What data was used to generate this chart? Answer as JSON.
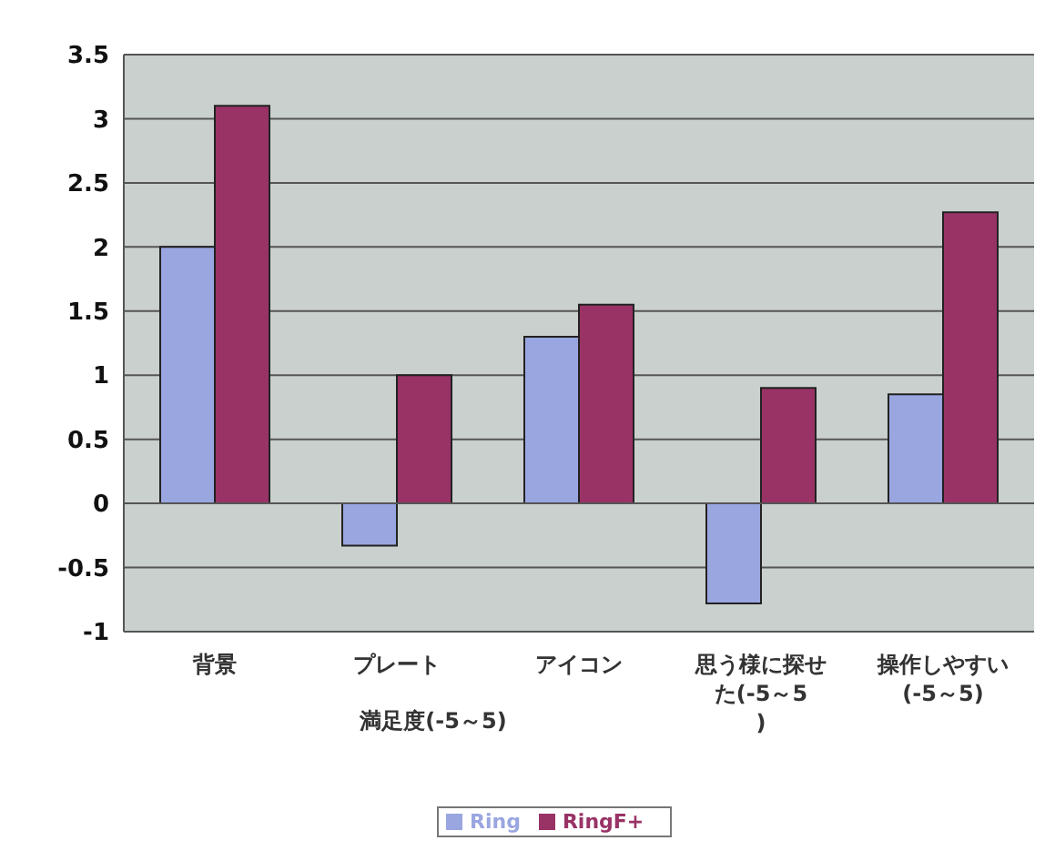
{
  "chart_data": {
    "type": "bar",
    "categories": [
      "背景",
      "プレート",
      "アイコン",
      "思う様に探せた(-5～5)",
      "操作しやすい(-5～5)"
    ],
    "series": [
      {
        "name": "Ring",
        "color": "#9aa6e0",
        "values": [
          2.0,
          -0.33,
          1.3,
          -0.78,
          0.85
        ]
      },
      {
        "name": "RingF+",
        "color": "#993366",
        "values": [
          3.1,
          1.0,
          1.55,
          0.9,
          2.27
        ]
      }
    ],
    "ylim": [
      -1,
      3.5
    ],
    "yticks": [
      -1,
      -0.5,
      0,
      0.5,
      1,
      1.5,
      2,
      2.5,
      3,
      3.5
    ],
    "grid": "y",
    "legend": "bottom",
    "annotations": [
      "満足度(-5～5)"
    ]
  }
}
